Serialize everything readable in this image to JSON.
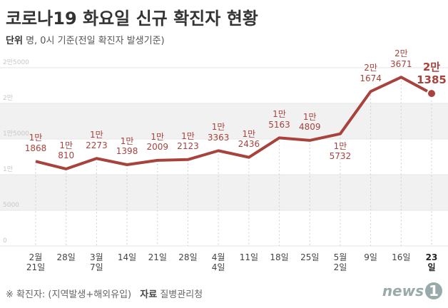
{
  "header": {
    "title": "코로나19 화요일 신규 확진자 현황",
    "unit_label": "단위",
    "unit_text": "명, 0시 기준(전일 확진자 발생기준)"
  },
  "chart_data": {
    "type": "line",
    "categories": [
      "2월\n21일",
      "28일",
      "3월\n7일",
      "14일",
      "21일",
      "28일",
      "4월\n4일",
      "11일",
      "18일",
      "25일",
      "5월\n2일",
      "9일",
      "16일",
      "23일"
    ],
    "values": [
      11868,
      10810,
      12273,
      11398,
      12009,
      12123,
      13363,
      12436,
      15163,
      14809,
      15732,
      21674,
      23671,
      21385
    ],
    "value_labels": [
      "1만\n1868",
      "1만\n810",
      "1만\n2273",
      "1만\n1398",
      "1만\n2009",
      "1만\n2123",
      "1만\n3363",
      "1만\n2436",
      "1만\n5163",
      "1만\n4809",
      "1만\n5732",
      "2만\n1674",
      "2만\n3671",
      "2만\n1385"
    ],
    "color": "#a8423c",
    "ylim": [
      0,
      25000
    ],
    "yticks": [
      0,
      5000,
      {
        "value": 10000,
        "label": "1만"
      },
      {
        "value": 15000,
        "label": "1만5000"
      },
      {
        "value": 20000,
        "label": "2만"
      },
      {
        "value": 25000,
        "label": "2만5000"
      }
    ],
    "grid": true
  },
  "footer": {
    "note": "※ 확진자: (지역발생+해외유입)",
    "source_label": "자료",
    "source": "질병관리청",
    "logo_text": "news",
    "logo_num": "1"
  }
}
